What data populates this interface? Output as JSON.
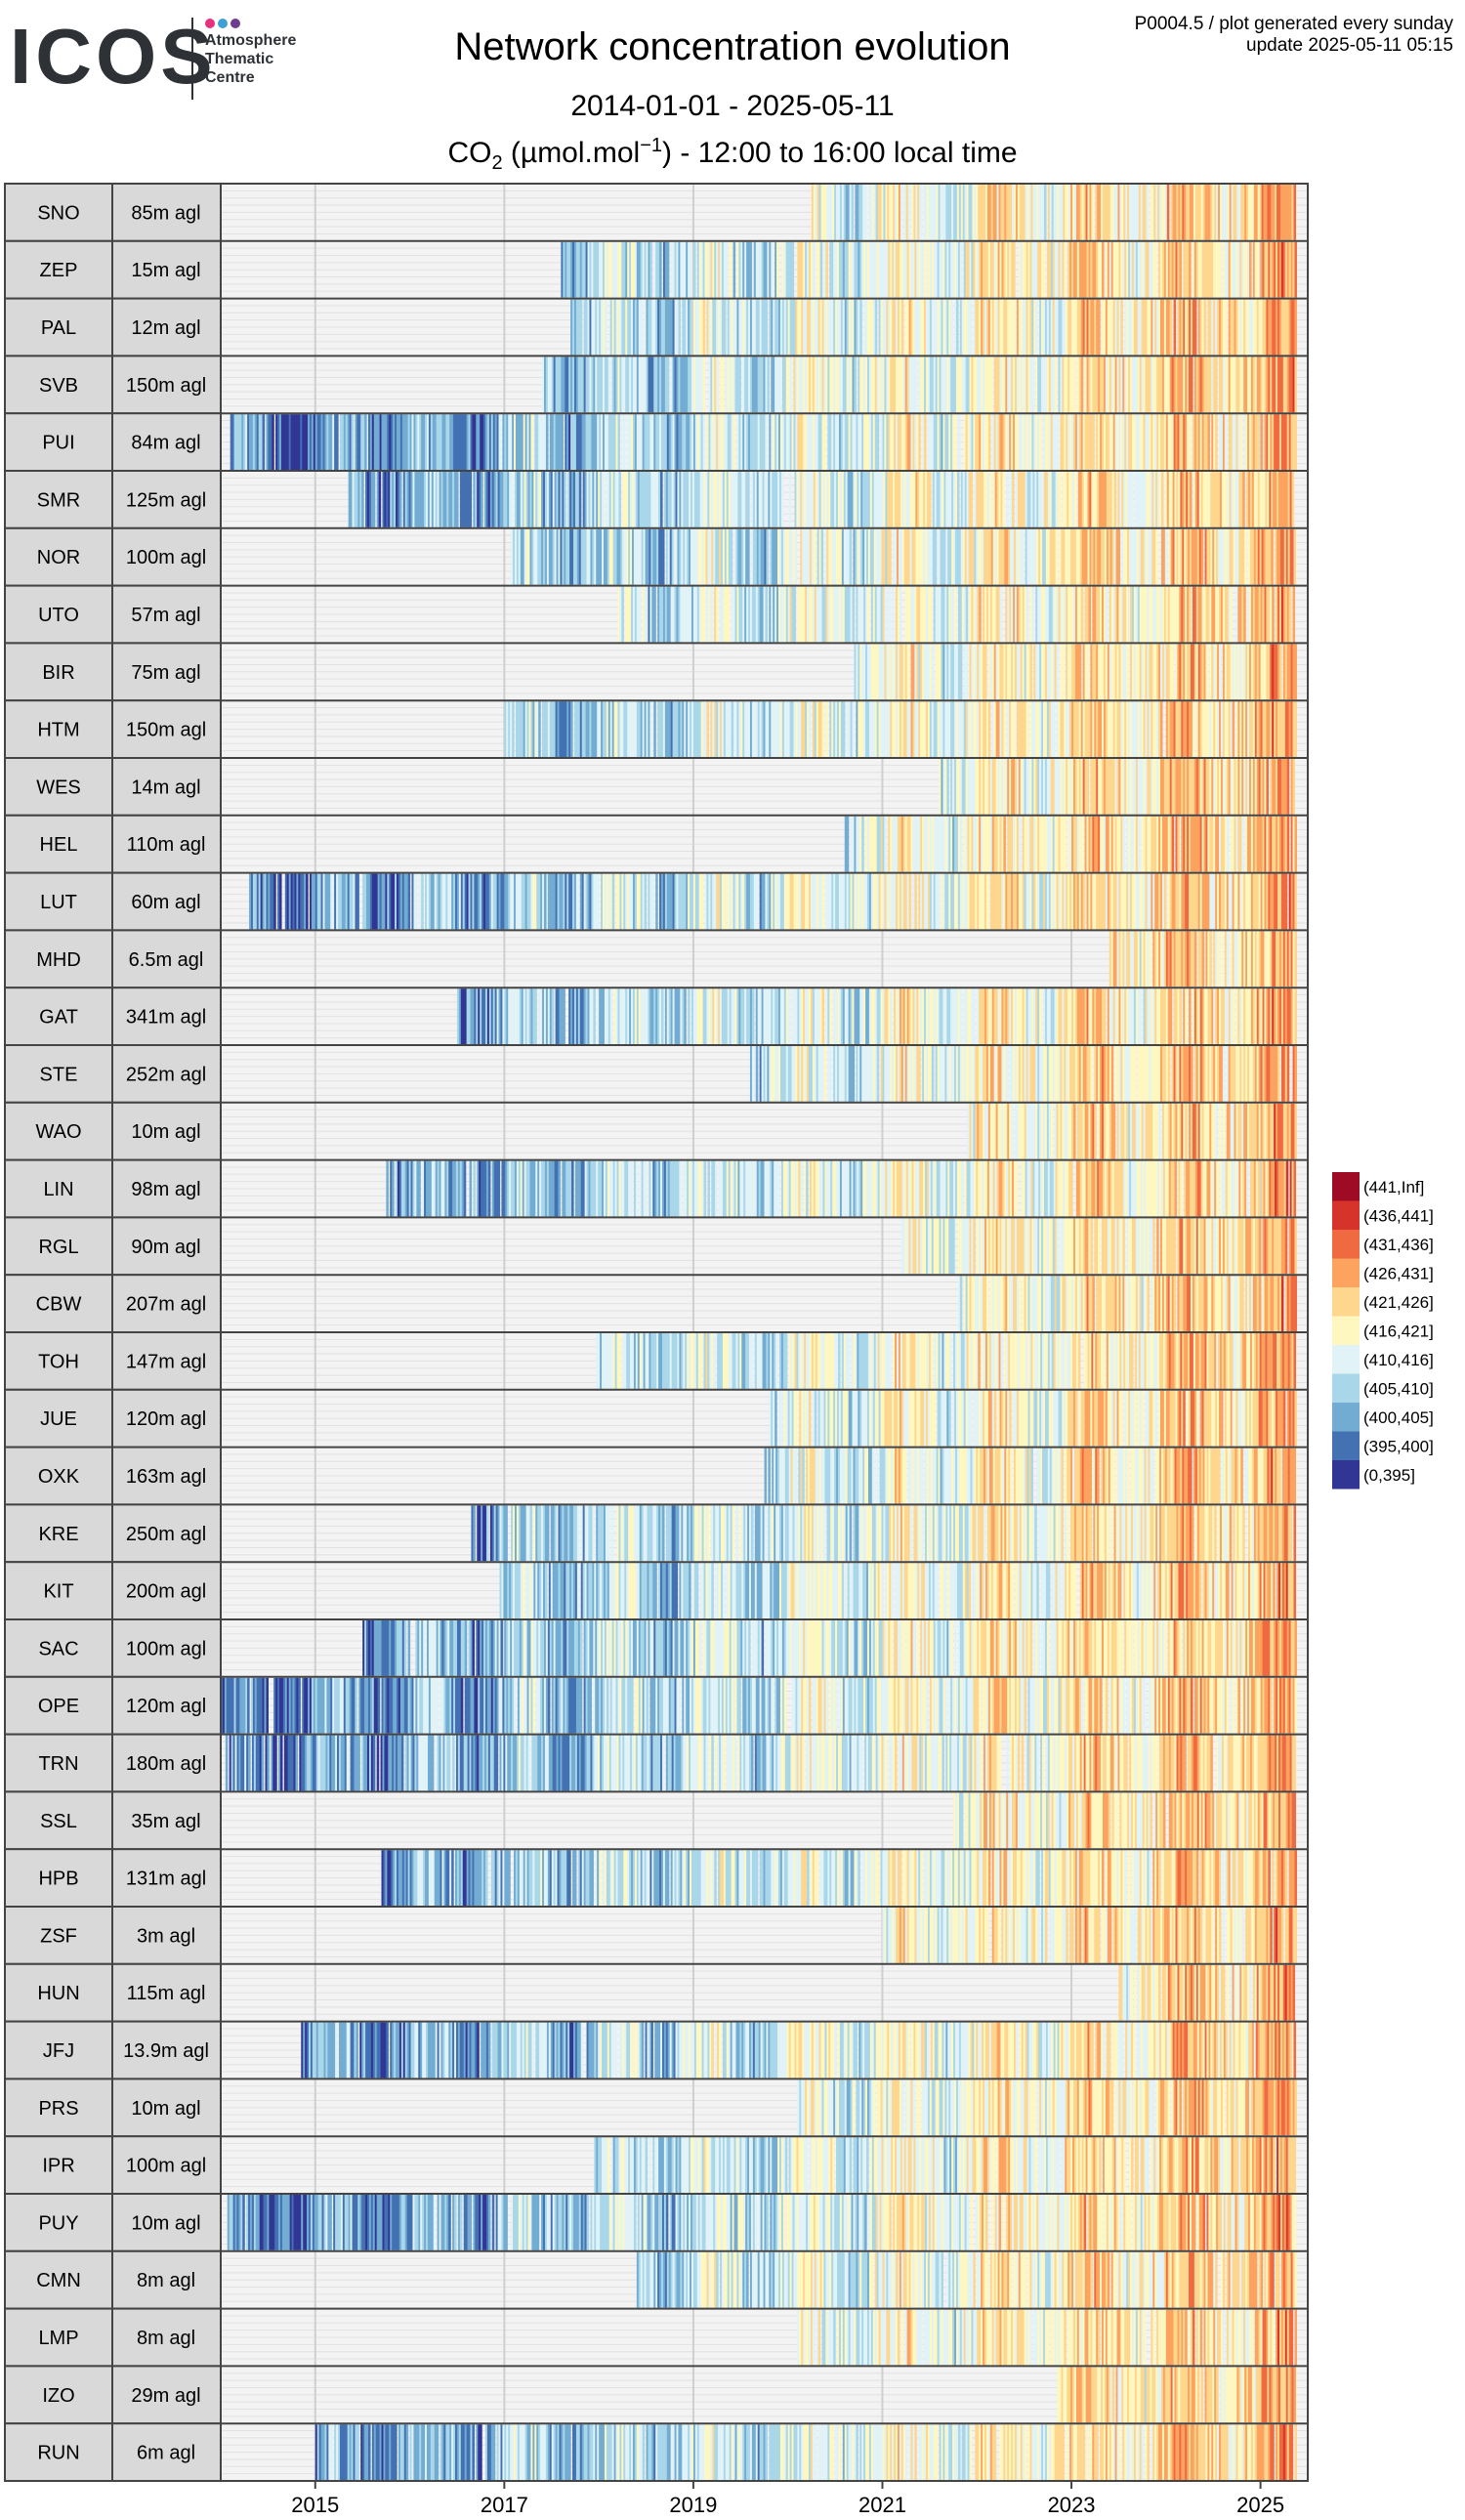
{
  "logo": {
    "text": "ICOS",
    "subtitle_lines": [
      "Atmosphere",
      "Thematic",
      "Centre"
    ],
    "dot_colors": [
      "#e7317d",
      "#3da0d8",
      "#6f3c91"
    ]
  },
  "meta": {
    "product": "P0004.5 / plot generated every sunday",
    "update": "update  2025-05-11 05:15"
  },
  "title": "Network concentration evolution",
  "subtitle": "2014-01-01 - 2025-05-11",
  "variable": {
    "prefix": "CO",
    "subscript": "2",
    "unit_open": " (µmol.mol",
    "superscript": "−1",
    "unit_close": ") - 12:00 to 16:00 local time"
  },
  "chart_data": {
    "type": "heatmap",
    "title": "Network concentration evolution",
    "x_range": [
      "2014-01-01",
      "2025-05-11"
    ],
    "x_ticks": [
      "2015",
      "2017",
      "2019",
      "2021",
      "2023",
      "2025"
    ],
    "grid": true,
    "legend_position": "right",
    "legend": [
      {
        "label": "(441,Inf]",
        "color": "#9e0b24"
      },
      {
        "label": "(436,441]",
        "color": "#d6342a"
      },
      {
        "label": "(431,436]",
        "color": "#f06a41"
      },
      {
        "label": "(426,431]",
        "color": "#fba35f"
      },
      {
        "label": "(421,426]",
        "color": "#fed68e"
      },
      {
        "label": "(416,421]",
        "color": "#fff7c0"
      },
      {
        "label": "(410,416]",
        "color": "#e1f3f7"
      },
      {
        "label": "(405,410]",
        "color": "#a9d7e9"
      },
      {
        "label": "(400,405]",
        "color": "#73acd2"
      },
      {
        "label": "(395,400]",
        "color": "#4371b2"
      },
      {
        "label": "(0,395]",
        "color": "#313695"
      }
    ],
    "stations": [
      {
        "code": "SNO",
        "height": "85m agl",
        "start": 2020.25
      },
      {
        "code": "ZEP",
        "height": "15m agl",
        "start": 2017.6
      },
      {
        "code": "PAL",
        "height": "12m agl",
        "start": 2017.7
      },
      {
        "code": "SVB",
        "height": "150m agl",
        "start": 2017.4
      },
      {
        "code": "PUI",
        "height": "84m agl",
        "start": 2014.1
      },
      {
        "code": "SMR",
        "height": "125m agl",
        "start": 2015.35
      },
      {
        "code": "NOR",
        "height": "100m agl",
        "start": 2017.05
      },
      {
        "code": "UTO",
        "height": "57m agl",
        "start": 2018.2
      },
      {
        "code": "BIR",
        "height": "75m agl",
        "start": 2020.7
      },
      {
        "code": "HTM",
        "height": "150m agl",
        "start": 2017.0
      },
      {
        "code": "WES",
        "height": "14m agl",
        "start": 2021.6
      },
      {
        "code": "HEL",
        "height": "110m agl",
        "start": 2020.6
      },
      {
        "code": "LUT",
        "height": "60m agl",
        "start": 2014.3
      },
      {
        "code": "MHD",
        "height": "6.5m agl",
        "start": 2023.4
      },
      {
        "code": "GAT",
        "height": "341m agl",
        "start": 2016.5
      },
      {
        "code": "STE",
        "height": "252m agl",
        "start": 2019.6
      },
      {
        "code": "WAO",
        "height": "10m agl",
        "start": 2021.9
      },
      {
        "code": "LIN",
        "height": "98m agl",
        "start": 2015.75
      },
      {
        "code": "RGL",
        "height": "90m agl",
        "start": 2021.2
      },
      {
        "code": "CBW",
        "height": "207m agl",
        "start": 2021.8
      },
      {
        "code": "TOH",
        "height": "147m agl",
        "start": 2017.95
      },
      {
        "code": "JUE",
        "height": "120m agl",
        "start": 2019.8
      },
      {
        "code": "OXK",
        "height": "163m agl",
        "start": 2019.75
      },
      {
        "code": "KRE",
        "height": "250m agl",
        "start": 2016.65
      },
      {
        "code": "KIT",
        "height": "200m agl",
        "start": 2016.95
      },
      {
        "code": "SAC",
        "height": "100m agl",
        "start": 2015.5
      },
      {
        "code": "OPE",
        "height": "120m agl",
        "start": 2014.0
      },
      {
        "code": "TRN",
        "height": "180m agl",
        "start": 2014.05
      },
      {
        "code": "SSL",
        "height": "35m agl",
        "start": 2021.75
      },
      {
        "code": "HPB",
        "height": "131m agl",
        "start": 2015.7
      },
      {
        "code": "ZSF",
        "height": "3m agl",
        "start": 2021.0
      },
      {
        "code": "HUN",
        "height": "115m agl",
        "start": 2023.5
      },
      {
        "code": "JFJ",
        "height": "13.9m agl",
        "start": 2014.85
      },
      {
        "code": "PRS",
        "height": "10m agl",
        "start": 2020.1
      },
      {
        "code": "IPR",
        "height": "100m agl",
        "start": 2017.95
      },
      {
        "code": "PUY",
        "height": "10m agl",
        "start": 2014.05
      },
      {
        "code": "CMN",
        "height": "8m agl",
        "start": 2018.4
      },
      {
        "code": "LMP",
        "height": "8m agl",
        "start": 2020.1
      },
      {
        "code": "IZO",
        "height": "29m agl",
        "start": 2022.85
      },
      {
        "code": "RUN",
        "height": "6m agl",
        "start": 2015.0
      }
    ]
  }
}
